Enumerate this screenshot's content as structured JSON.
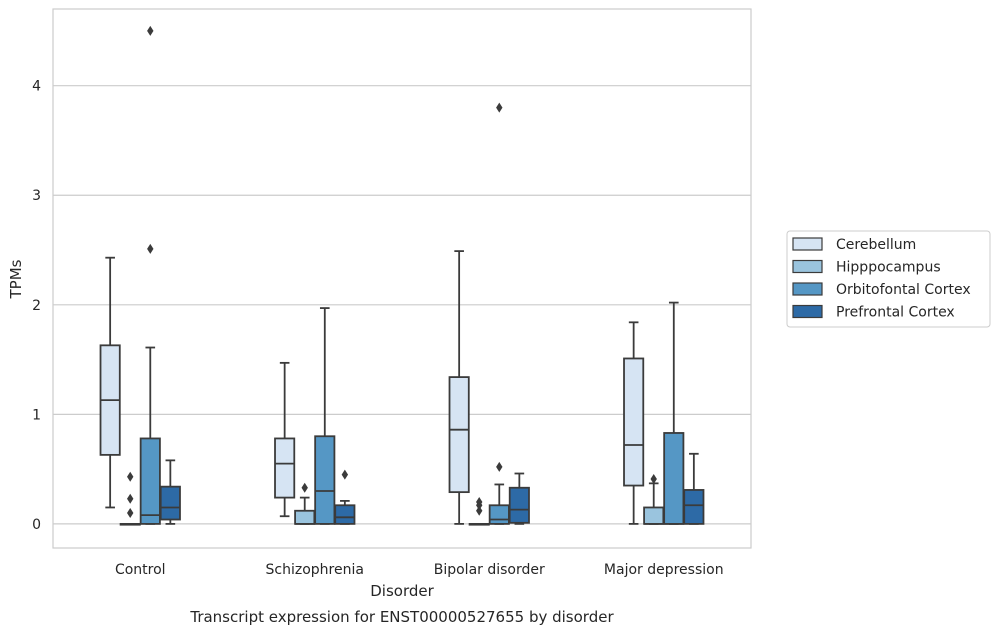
{
  "chart_data": {
    "type": "box",
    "xlabel": "Disorder",
    "ylabel": "TPMs",
    "caption": "Transcript expression for ENST00000527655 by disorder",
    "ylim": [
      -0.22,
      4.7
    ],
    "yticks": [
      0,
      1,
      2,
      3,
      4
    ],
    "grid": "horizontal",
    "legend_position": "right",
    "categories": [
      "Control",
      "Schizophrenia",
      "Bipolar disorder",
      "Major depression"
    ],
    "series": [
      {
        "name": "Cerebellum",
        "color": "#d6e4f3",
        "boxes": [
          {
            "whislo": 0.15,
            "q1": 0.63,
            "med": 1.13,
            "q3": 1.63,
            "whishi": 2.43,
            "fliers": []
          },
          {
            "whislo": 0.07,
            "q1": 0.24,
            "med": 0.55,
            "q3": 0.78,
            "whishi": 1.47,
            "fliers": []
          },
          {
            "whislo": 0.0,
            "q1": 0.29,
            "med": 0.86,
            "q3": 1.34,
            "whishi": 2.49,
            "fliers": []
          },
          {
            "whislo": 0.0,
            "q1": 0.35,
            "med": 0.72,
            "q3": 1.51,
            "whishi": 1.84,
            "fliers": []
          }
        ]
      },
      {
        "name": "Hipppocampus",
        "color": "#9ac4de",
        "boxes": [
          {
            "whislo": 0.0,
            "q1": 0.0,
            "med": 0.0,
            "q3": 0.0,
            "whishi": 0.0,
            "fliers": [
              0.1,
              0.23,
              0.43
            ]
          },
          {
            "whislo": 0.0,
            "q1": 0.0,
            "med": 0.0,
            "q3": 0.12,
            "whishi": 0.24,
            "fliers": [
              0.33
            ]
          },
          {
            "whislo": 0.0,
            "q1": 0.0,
            "med": 0.0,
            "q3": 0.0,
            "whishi": 0.0,
            "fliers": [
              0.12,
              0.17,
              0.2
            ]
          },
          {
            "whislo": 0.0,
            "q1": 0.0,
            "med": 0.0,
            "q3": 0.15,
            "whishi": 0.37,
            "fliers": [
              0.41
            ]
          }
        ]
      },
      {
        "name": "Orbitofontal Cortex",
        "color": "#5597c5",
        "boxes": [
          {
            "whislo": 0.0,
            "q1": 0.0,
            "med": 0.08,
            "q3": 0.78,
            "whishi": 1.61,
            "fliers": [
              2.51,
              4.5
            ]
          },
          {
            "whislo": 0.0,
            "q1": 0.0,
            "med": 0.3,
            "q3": 0.8,
            "whishi": 1.97,
            "fliers": []
          },
          {
            "whislo": 0.0,
            "q1": 0.0,
            "med": 0.04,
            "q3": 0.17,
            "whishi": 0.36,
            "fliers": [
              0.52,
              3.8
            ]
          },
          {
            "whislo": 0.0,
            "q1": 0.0,
            "med": 0.0,
            "q3": 0.83,
            "whishi": 2.02,
            "fliers": []
          }
        ]
      },
      {
        "name": "Prefrontal Cortex",
        "color": "#2d6aa6",
        "boxes": [
          {
            "whislo": 0.0,
            "q1": 0.04,
            "med": 0.15,
            "q3": 0.34,
            "whishi": 0.58,
            "fliers": []
          },
          {
            "whislo": 0.0,
            "q1": 0.0,
            "med": 0.06,
            "q3": 0.17,
            "whishi": 0.21,
            "fliers": [
              0.45
            ]
          },
          {
            "whislo": 0.0,
            "q1": 0.01,
            "med": 0.13,
            "q3": 0.33,
            "whishi": 0.46,
            "fliers": []
          },
          {
            "whislo": 0.0,
            "q1": 0.0,
            "med": 0.17,
            "q3": 0.31,
            "whishi": 0.64,
            "fliers": []
          }
        ]
      }
    ]
  }
}
